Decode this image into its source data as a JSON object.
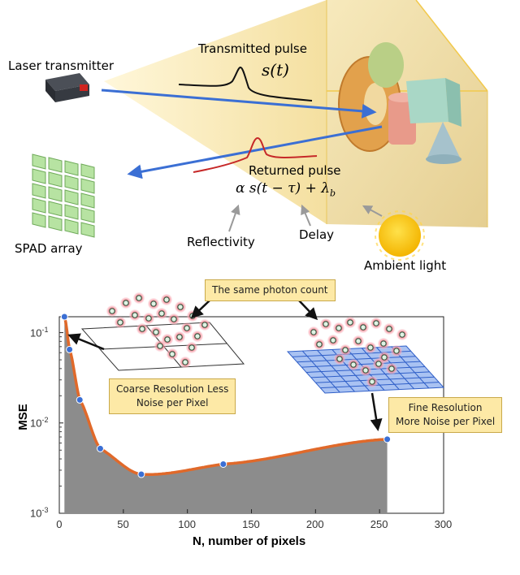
{
  "labels": {
    "laser": "Laser transmitter",
    "transmitted": "Transmitted pulse",
    "transmitted_eq": "s(t)",
    "returned": "Returned pulse",
    "returned_eq": "α s(t − τ) + λ",
    "returned_eq_sub": "b",
    "spad": "SPAD array",
    "reflectivity": "Reflectivity",
    "delay": "Delay",
    "ambient": "Ambient light"
  },
  "notes": {
    "same_count": "The same photon count",
    "coarse": [
      "Coarse Resolution Less",
      "Noise per Pixel"
    ],
    "fine": [
      "Fine Resolution",
      "More Noise per Pixel"
    ]
  },
  "colors": {
    "beam": "#3b6fd4",
    "pulse_returned": "#c62828",
    "curve": "#e0692a",
    "fill": "#8c8c8c",
    "marker": "#3b6fd4",
    "note_bg": "#fde9a6"
  },
  "chart_data": {
    "type": "area",
    "xlabel": "N, number of pixels",
    "ylabel": "MSE",
    "xlim": [
      0,
      300
    ],
    "ylim": [
      0.001,
      0.15
    ],
    "yscale": "log",
    "grid": false,
    "x_ticks": [
      "0",
      "50",
      "100",
      "150",
      "200",
      "250",
      "300"
    ],
    "y_ticks": [
      "10",
      "10",
      "10"
    ],
    "y_tick_exps": [
      "-1",
      "-2",
      "-3"
    ],
    "x": [
      4,
      8,
      16,
      32,
      64,
      128,
      256
    ],
    "y": [
      0.15,
      0.065,
      0.018,
      0.0052,
      0.0027,
      0.0035,
      0.0066
    ]
  }
}
